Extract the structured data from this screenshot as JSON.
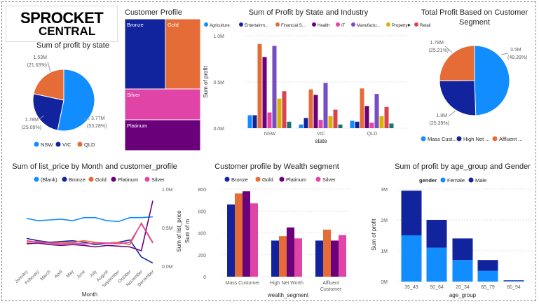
{
  "logo": {
    "line1": "SPROCKET",
    "line2": "CENTRAL"
  },
  "colors": {
    "navy": "#12239E",
    "orange": "#E66C37",
    "purple": "#6B007B",
    "pink": "#E044A7",
    "blue": "#118DFF",
    "violet": "#744EC2",
    "yellow": "#D9B300",
    "red": "#D64550",
    "teal": "#197278",
    "darkblue": "#1A2B8F"
  },
  "chart_data": [
    {
      "id": "profit_by_state",
      "type": "pie",
      "title": "Sum of profit by state",
      "categories": [
        "NSW",
        "VIC",
        "QLD"
      ],
      "values": [
        3.77,
        1.78,
        1.53
      ],
      "value_labels": [
        "3.77M",
        "1.78M",
        "1.53M"
      ],
      "percent_labels": [
        "(53.28%)",
        "(25.09%)",
        "(21.63%)"
      ],
      "colors": [
        "#118DFF",
        "#12239E",
        "#E66C37"
      ],
      "legend": {
        "position": "bottom",
        "items": [
          "NSW",
          "VIC",
          "QLD"
        ]
      }
    },
    {
      "id": "customer_profile",
      "type": "treemap",
      "title": "Customer Profile",
      "categories": [
        "Bronze",
        "Gold",
        "Silver",
        "Platinum"
      ],
      "colors": [
        "#12239E",
        "#E66C37",
        "#E044A7",
        "#6B007B"
      ]
    },
    {
      "id": "profit_by_state_industry",
      "type": "bar",
      "title": "Sum of Profit by State and Industry",
      "xlabel": "state",
      "ylabel": "Sum of profit",
      "categories": [
        "NSW",
        "VIC",
        "QLD"
      ],
      "yticks": [
        "0.0M",
        "0.5M",
        "1.0M"
      ],
      "ylim": [
        0,
        1.0
      ],
      "series": [
        {
          "name": "Agriculture",
          "color": "#118DFF",
          "values": [
            0.14,
            0.04,
            0.08
          ]
        },
        {
          "name": "Entertainment",
          "color": "#12239E",
          "values": [
            0.14,
            0.11,
            0.07
          ]
        },
        {
          "name": "Financial Services",
          "color": "#E66C37",
          "values": [
            0.91,
            0.42,
            0.43
          ]
        },
        {
          "name": "Health",
          "color": "#6B007B",
          "values": [
            0.77,
            0.36,
            0.24
          ]
        },
        {
          "name": "IT",
          "color": "#E044A7",
          "values": [
            0.17,
            0.09,
            0.06
          ]
        },
        {
          "name": "Manufacturing",
          "color": "#744EC2",
          "values": [
            0.89,
            0.49,
            0.37
          ]
        },
        {
          "name": "Property",
          "color": "#D9B300",
          "values": [
            0.32,
            0.13,
            0.13
          ]
        },
        {
          "name": "Retail",
          "color": "#D64550",
          "values": [
            0.4,
            0.2,
            0.23
          ]
        },
        {
          "name": "",
          "color": "#197278",
          "values": [
            0.07,
            0.04,
            0.05
          ]
        }
      ],
      "legend_labels": [
        "Agriculture",
        "Entertainm...",
        "Financial S...",
        "Health",
        "IT",
        "Manufactu...",
        "Property",
        "Retail"
      ]
    },
    {
      "id": "profit_by_segment",
      "type": "pie",
      "title": "Total Profit Based on Customer Segment",
      "categories": [
        "Mass Customer",
        "High Net Worth",
        "Affluent Customer"
      ],
      "values": [
        3.5,
        1.8,
        1.78
      ],
      "value_labels": [
        "3.5M",
        "1.8M",
        "1.78M"
      ],
      "percent_labels": [
        "(49.39%)",
        "(25.39%)",
        "(25.21%)"
      ],
      "colors": [
        "#118DFF",
        "#12239E",
        "#E66C37"
      ],
      "legend": {
        "position": "bottom",
        "items": [
          "Mass Cust...",
          "High Net ...",
          "Affluent ..."
        ]
      }
    },
    {
      "id": "list_price_by_month",
      "type": "line",
      "title": "Sum of list_price by Month and customer_profile",
      "xlabel": "Month",
      "categories": [
        "January",
        "February",
        "March",
        "April",
        "May",
        "June",
        "July",
        "August",
        "September",
        "October",
        "November",
        "December"
      ],
      "yticks": [
        "0.0M",
        "0.5M",
        "1.0M"
      ],
      "ylim": [
        0,
        1.0
      ],
      "series": [
        {
          "name": "(Blank)",
          "color": "#118DFF",
          "values": [
            0.62,
            0.59,
            0.6,
            0.61,
            0.59,
            0.63,
            0.63,
            0.59,
            0.58,
            0.63,
            0.63,
            0.64
          ]
        },
        {
          "name": "Bronze",
          "color": "#12239E",
          "values": [
            0.36,
            0.33,
            0.31,
            0.32,
            0.33,
            0.31,
            0.28,
            0.3,
            0.31,
            0.34,
            0.12,
            0.04
          ]
        },
        {
          "name": "Gold",
          "color": "#E66C37",
          "values": [
            0.31,
            0.32,
            0.3,
            0.31,
            0.31,
            0.33,
            0.31,
            0.3,
            0.31,
            0.28,
            0.56,
            0.31
          ]
        },
        {
          "name": "Platinum",
          "color": "#6B007B",
          "values": [
            0.29,
            0.3,
            0.28,
            0.27,
            0.28,
            0.27,
            0.25,
            0.27,
            0.26,
            0.25,
            0.2,
            0.85
          ]
        },
        {
          "name": "Silver",
          "color": "#E044A7",
          "values": [
            0.33,
            0.31,
            0.3,
            0.29,
            0.3,
            0.29,
            0.3,
            0.3,
            0.29,
            0.31,
            0.55,
            0.3
          ]
        }
      ]
    },
    {
      "id": "profile_by_wealth",
      "type": "bar",
      "title": "Customer profile by Wealth segment",
      "xlabel": "wealth_segment",
      "ylabel": "Sum of list_price",
      "ylabel2": "Sum of m",
      "categories": [
        "Mass Customer",
        "High Net Worth",
        "Affluent Customer"
      ],
      "category_lines": [
        [
          "Mass Customer"
        ],
        [
          "High Net Worth"
        ],
        [
          "Affluent",
          "Customer"
        ]
      ],
      "yticks": [
        "0",
        "200",
        "400",
        "600",
        "800"
      ],
      "ylim": [
        0,
        800
      ],
      "series": [
        {
          "name": "Bronze",
          "color": "#12239E",
          "values": [
            660,
            330,
            330
          ]
        },
        {
          "name": "Gold",
          "color": "#E66C37",
          "values": [
            760,
            370,
            430
          ]
        },
        {
          "name": "Platinum",
          "color": "#6B007B",
          "values": [
            780,
            450,
            330
          ]
        },
        {
          "name": "Silver",
          "color": "#E044A7",
          "values": [
            670,
            350,
            380
          ]
        }
      ]
    },
    {
      "id": "profit_by_age_gender",
      "type": "bar",
      "stacked": true,
      "title": "Sum of profit by age_group and Gender",
      "xlabel": "age_group",
      "ylabel": "Sum of profit",
      "legend_title": "gender",
      "categories": [
        "35_49",
        "50_64",
        "20_34",
        "65_79",
        "80_94"
      ],
      "yticks": [
        "0M",
        "1M",
        "2M",
        "3M"
      ],
      "ylim": [
        0,
        3
      ],
      "series": [
        {
          "name": "Female",
          "color": "#118DFF",
          "values": [
            1.5,
            1.1,
            0.7,
            0.35,
            0.02
          ]
        },
        {
          "name": "Male",
          "color": "#12239E",
          "values": [
            1.45,
            0.9,
            0.7,
            0.35,
            0.02
          ]
        }
      ]
    }
  ]
}
